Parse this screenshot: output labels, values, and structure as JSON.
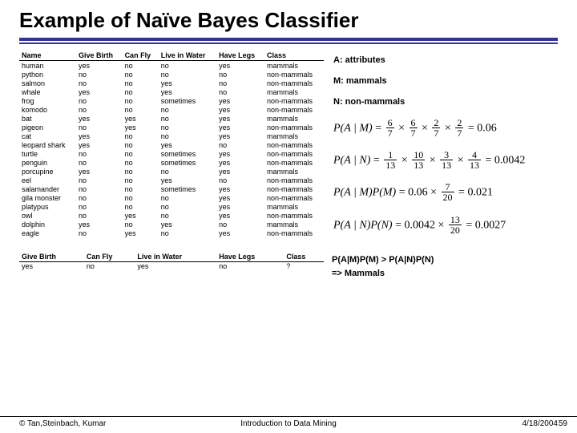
{
  "title": "Example of Naïve Bayes Classifier",
  "train_table": {
    "columns": [
      "Name",
      "Give Birth",
      "Can Fly",
      "Live in Water",
      "Have Legs",
      "Class"
    ],
    "rows": [
      [
        "human",
        "yes",
        "no",
        "no",
        "yes",
        "mammals"
      ],
      [
        "python",
        "no",
        "no",
        "no",
        "no",
        "non-mammals"
      ],
      [
        "salmon",
        "no",
        "no",
        "yes",
        "no",
        "non-mammals"
      ],
      [
        "whale",
        "yes",
        "no",
        "yes",
        "no",
        "mammals"
      ],
      [
        "frog",
        "no",
        "no",
        "sometimes",
        "yes",
        "non-mammals"
      ],
      [
        "komodo",
        "no",
        "no",
        "no",
        "yes",
        "non-mammals"
      ],
      [
        "bat",
        "yes",
        "yes",
        "no",
        "yes",
        "mammals"
      ],
      [
        "pigeon",
        "no",
        "yes",
        "no",
        "yes",
        "non-mammals"
      ],
      [
        "cat",
        "yes",
        "no",
        "no",
        "yes",
        "mammals"
      ],
      [
        "leopard shark",
        "yes",
        "no",
        "yes",
        "no",
        "non-mammals"
      ],
      [
        "turtle",
        "no",
        "no",
        "sometimes",
        "yes",
        "non-mammals"
      ],
      [
        "penguin",
        "no",
        "no",
        "sometimes",
        "yes",
        "non-mammals"
      ],
      [
        "porcupine",
        "yes",
        "no",
        "no",
        "yes",
        "mammals"
      ],
      [
        "eel",
        "no",
        "no",
        "yes",
        "no",
        "non-mammals"
      ],
      [
        "salamander",
        "no",
        "no",
        "sometimes",
        "yes",
        "non-mammals"
      ],
      [
        "gila monster",
        "no",
        "no",
        "no",
        "yes",
        "non-mammals"
      ],
      [
        "platypus",
        "no",
        "no",
        "no",
        "yes",
        "mammals"
      ],
      [
        "owl",
        "no",
        "yes",
        "no",
        "yes",
        "non-mammals"
      ],
      [
        "dolphin",
        "yes",
        "no",
        "yes",
        "no",
        "mammals"
      ],
      [
        "eagle",
        "no",
        "yes",
        "no",
        "yes",
        "non-mammals"
      ]
    ]
  },
  "test_table": {
    "columns": [
      "Give Birth",
      "Can Fly",
      "Live in Water",
      "Have Legs",
      "Class"
    ],
    "rows": [
      [
        "yes",
        "no",
        "yes",
        "no",
        "?"
      ]
    ]
  },
  "legend": {
    "a": "A: attributes",
    "m": "M: mammals",
    "n": "N: non-mammals"
  },
  "equations": {
    "e1": {
      "lhs": "P(A | M)",
      "f1n": "6",
      "f1d": "7",
      "f2n": "6",
      "f2d": "7",
      "f3n": "2",
      "f3d": "7",
      "f4n": "2",
      "f4d": "7",
      "rhs": "0.06"
    },
    "e2": {
      "lhs": "P(A | N)",
      "f1n": "1",
      "f1d": "13",
      "f2n": "10",
      "f2d": "13",
      "f3n": "3",
      "f3d": "13",
      "f4n": "4",
      "f4d": "13",
      "rhs": "0.0042"
    },
    "e3": {
      "lhs": "P(A | M)P(M)",
      "val": "0.06",
      "pn": "7",
      "pd": "20",
      "rhs": "0.021"
    },
    "e4": {
      "lhs": "P(A | N)P(N)",
      "val": "0.0042",
      "pn": "13",
      "pd": "20",
      "rhs": "0.0027"
    }
  },
  "result": {
    "line1": "P(A|M)P(M) > P(A|N)P(N)",
    "line2": "=> Mammals"
  },
  "footer": {
    "left": "© Tan,Steinbach, Kumar",
    "mid": "Introduction to Data Mining",
    "right": "4/18/2004",
    "page": "59"
  }
}
